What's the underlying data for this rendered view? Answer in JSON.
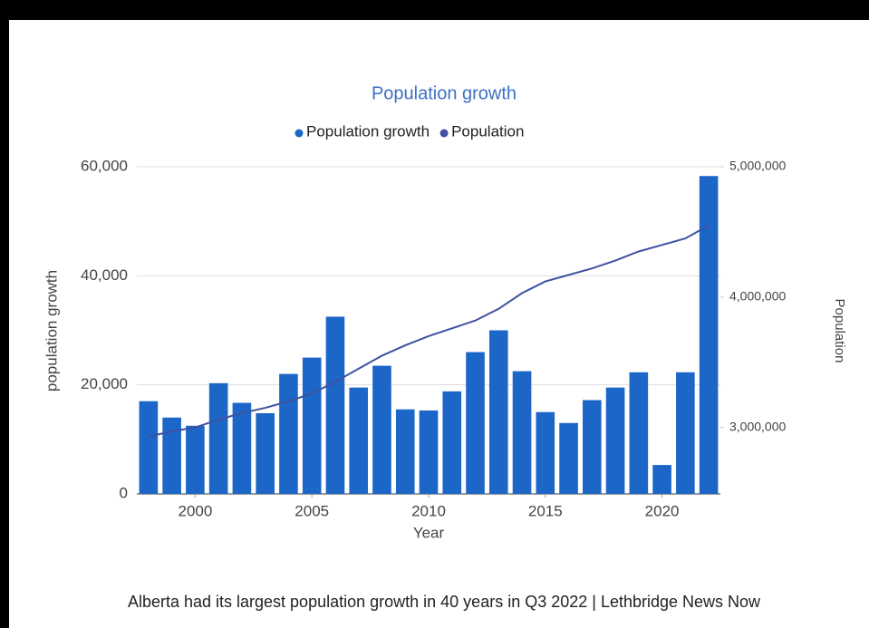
{
  "chart_data": {
    "type": "bar_line",
    "title": "Population growth",
    "x_label": "Year",
    "y_label": "population growth",
    "y2_label": "Population",
    "caption": "Alberta had its largest population growth in 40 years in Q3 2022 | Lethbridge News Now",
    "x": [
      1998,
      1999,
      2000,
      2001,
      2002,
      2003,
      2004,
      2005,
      2006,
      2007,
      2008,
      2009,
      2010,
      2011,
      2012,
      2013,
      2014,
      2015,
      2016,
      2017,
      2018,
      2019,
      2020,
      2021,
      2022
    ],
    "xlim": [
      1997.5,
      2022.5
    ],
    "xticks": [
      2000,
      2005,
      2010,
      2015,
      2020
    ],
    "ylim": [
      0,
      60000
    ],
    "yticks": [
      0,
      {
        "value": 20000,
        "label": "20,000"
      },
      {
        "value": 40000,
        "label": "40,000"
      },
      {
        "value": 60000,
        "label": "60,000"
      }
    ],
    "y2lim": [
      2490000,
      5000000
    ],
    "y2ticks": [
      {
        "value": 3000000,
        "label": "3,000,000"
      },
      {
        "value": 4000000,
        "label": "4,000,000"
      },
      {
        "value": 5000000,
        "label": "5,000,000"
      }
    ],
    "grid": true,
    "series": [
      {
        "name": "Population growth",
        "type": "bar",
        "color": "#1c66c8",
        "values": [
          17000,
          14000,
          12500,
          20300,
          16700,
          14800,
          22000,
          25000,
          32500,
          19500,
          23500,
          15500,
          15300,
          18800,
          26000,
          30000,
          22500,
          15000,
          13000,
          17200,
          19500,
          22300,
          5300,
          22300,
          58300
        ]
      },
      {
        "name": "Population",
        "type": "line",
        "axis": "y2",
        "color": "#3f51a0",
        "values": [
          2930000,
          2970000,
          3000000,
          3060000,
          3110000,
          3150000,
          3200000,
          3260000,
          3350000,
          3450000,
          3550000,
          3630000,
          3700000,
          3760000,
          3820000,
          3910000,
          4030000,
          4120000,
          4170000,
          4220000,
          4280000,
          4350000,
          4400000,
          4450000,
          4550000
        ]
      }
    ]
  }
}
